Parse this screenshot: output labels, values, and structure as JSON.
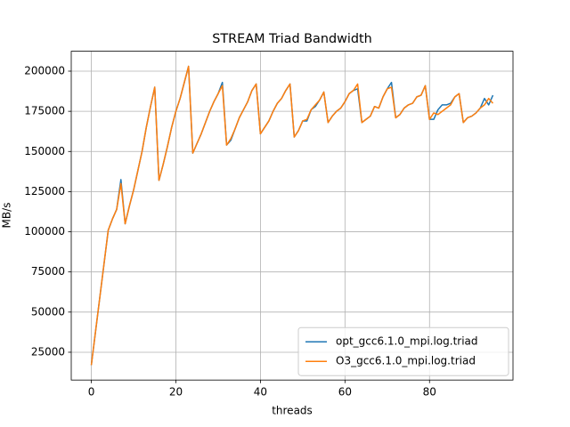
{
  "chart_data": {
    "type": "line",
    "title": "STREAM Triad Bandwidth",
    "xlabel": "threads",
    "ylabel": "MB/s",
    "x": [
      0,
      1,
      2,
      3,
      4,
      5,
      6,
      7,
      8,
      9,
      10,
      11,
      12,
      13,
      14,
      15,
      16,
      17,
      18,
      19,
      20,
      21,
      22,
      23,
      24,
      25,
      26,
      27,
      28,
      29,
      30,
      31,
      32,
      33,
      34,
      35,
      36,
      37,
      38,
      39,
      40,
      41,
      42,
      43,
      44,
      45,
      46,
      47,
      48,
      49,
      50,
      51,
      52,
      53,
      54,
      55,
      56,
      57,
      58,
      59,
      60,
      61,
      62,
      63,
      64,
      65,
      66,
      67,
      68,
      69,
      70,
      71,
      72,
      73,
      74,
      75,
      76,
      77,
      78,
      79,
      80,
      81,
      82,
      83,
      84,
      85,
      86,
      87,
      88,
      89,
      90,
      91,
      92,
      93,
      94,
      95
    ],
    "series": [
      {
        "name": "opt_gcc6.1.0_mpi.log.triad",
        "color": "#1f77b4",
        "values": [
          17000,
          38000,
          59000,
          80000,
          101000,
          108000,
          114000,
          132500,
          105000,
          116000,
          126000,
          138000,
          150000,
          165000,
          178000,
          190000,
          132000,
          142000,
          153000,
          165000,
          175000,
          183000,
          193000,
          203000,
          149000,
          155000,
          161000,
          168000,
          175000,
          181000,
          186000,
          193000,
          154000,
          157000,
          164000,
          171000,
          176000,
          181000,
          188000,
          192000,
          161000,
          165000,
          169000,
          175000,
          180000,
          183000,
          188000,
          192000,
          159000,
          163000,
          169000,
          169000,
          176000,
          178000,
          182000,
          187000,
          168000,
          172000,
          175000,
          177000,
          181000,
          186000,
          188000,
          189000,
          168000,
          170000,
          172000,
          178000,
          177000,
          184000,
          189000,
          193000,
          171000,
          173000,
          177000,
          179000,
          180000,
          184000,
          185000,
          191000,
          170000,
          170000,
          176000,
          179000,
          179000,
          180000,
          184000,
          186000,
          168000,
          171000,
          172000,
          174000,
          177000,
          183000,
          179000,
          185000
        ]
      },
      {
        "name": "O3_gcc6.1.0_mpi.log.triad",
        "color": "#ff7f0e",
        "values": [
          17000,
          38000,
          59000,
          80000,
          101000,
          108000,
          114000,
          130000,
          105000,
          116000,
          126000,
          138000,
          150000,
          165000,
          178000,
          190000,
          132000,
          142000,
          153000,
          165000,
          175000,
          183000,
          193000,
          203000,
          149000,
          155000,
          161000,
          168000,
          175000,
          181000,
          186000,
          191000,
          154000,
          158000,
          164000,
          171000,
          176000,
          181000,
          188000,
          192000,
          161000,
          165000,
          169000,
          175000,
          180000,
          183000,
          188000,
          192000,
          159000,
          163000,
          169000,
          170000,
          176000,
          179000,
          182000,
          187000,
          168000,
          172000,
          175000,
          177000,
          181000,
          186000,
          188000,
          192000,
          168000,
          170000,
          172000,
          178000,
          177000,
          184000,
          189000,
          190000,
          171000,
          173000,
          177000,
          179000,
          180000,
          184000,
          185000,
          191000,
          170000,
          174000,
          173000,
          175000,
          177000,
          179000,
          184000,
          186000,
          168000,
          171000,
          172000,
          174000,
          177000,
          179000,
          183000,
          180000
        ]
      }
    ],
    "xlim": [
      -4.75,
      99.75
    ],
    "ylim": [
      7700,
      212400
    ],
    "xticks": [
      0,
      20,
      40,
      60,
      80
    ],
    "yticks": [
      25000,
      50000,
      75000,
      100000,
      125000,
      150000,
      175000,
      200000
    ],
    "grid": true,
    "legend": "lower right"
  }
}
